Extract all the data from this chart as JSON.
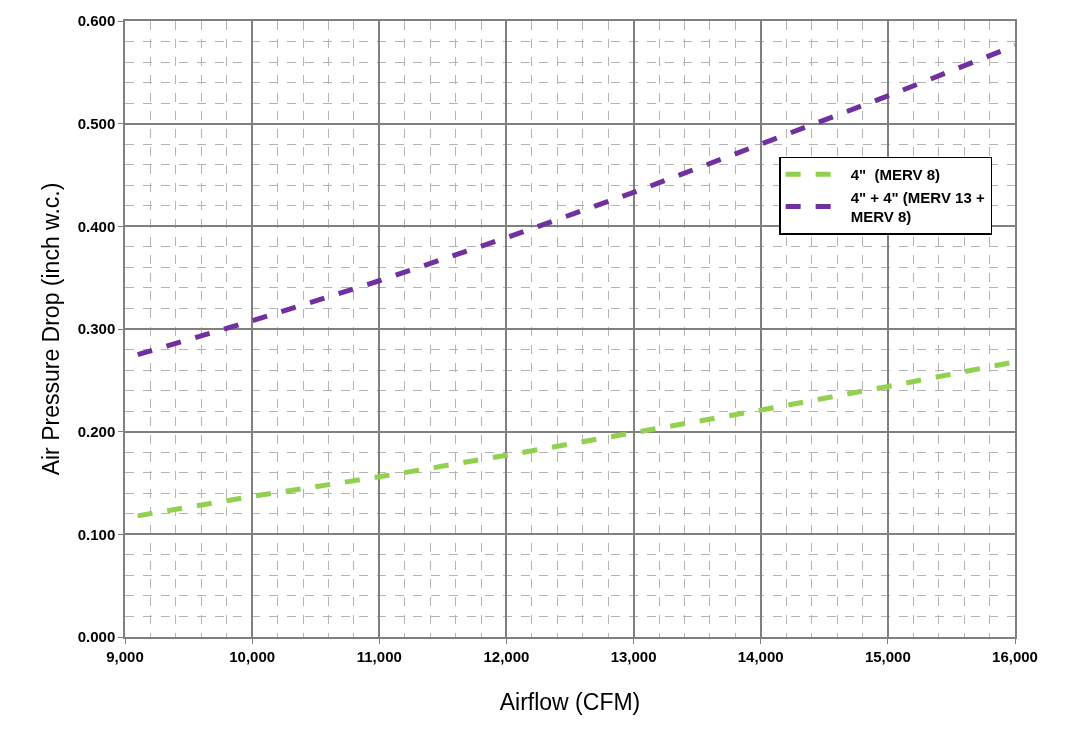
{
  "chart_data": {
    "type": "line",
    "xlabel": "Airflow (CFM)",
    "ylabel": "Air Pressure Drop (inch w.c.)",
    "x": [
      9100,
      10000,
      11000,
      12000,
      13000,
      14000,
      15000,
      16000
    ],
    "series": [
      {
        "name": "4\"  (MERV 8)",
        "color": "#92d050",
        "values": [
          0.118,
          0.137,
          0.156,
          0.177,
          0.199,
          0.221,
          0.244,
          0.268
        ]
      },
      {
        "name": "4\" + 4\" (MERV 13 + MERV 8)",
        "color": "#7030a0",
        "values": [
          0.275,
          0.308,
          0.347,
          0.389,
          0.433,
          0.48,
          0.527,
          0.576
        ]
      }
    ],
    "xlim": [
      9000,
      16000
    ],
    "xticks": [
      {
        "value": 9000,
        "label": "9,000"
      },
      {
        "value": 10000,
        "label": "10,000"
      },
      {
        "value": 11000,
        "label": "11,000"
      },
      {
        "value": 12000,
        "label": "12,000"
      },
      {
        "value": 13000,
        "label": "13,000"
      },
      {
        "value": 14000,
        "label": "14,000"
      },
      {
        "value": 15000,
        "label": "15,000"
      },
      {
        "value": 16000,
        "label": "16,000"
      }
    ],
    "ylim": [
      0,
      0.6
    ],
    "yticks": [
      {
        "value": 0,
        "label": "0.000"
      },
      {
        "value": 0.1,
        "label": "0.100"
      },
      {
        "value": 0.2,
        "label": "0.200"
      },
      {
        "value": 0.3,
        "label": "0.300"
      },
      {
        "value": 0.4,
        "label": "0.400"
      },
      {
        "value": 0.5,
        "label": "0.500"
      },
      {
        "value": 0.6,
        "label": "0.600"
      }
    ],
    "grid": true,
    "legend": "top right",
    "marker": "none",
    "line_style": "dashed"
  }
}
